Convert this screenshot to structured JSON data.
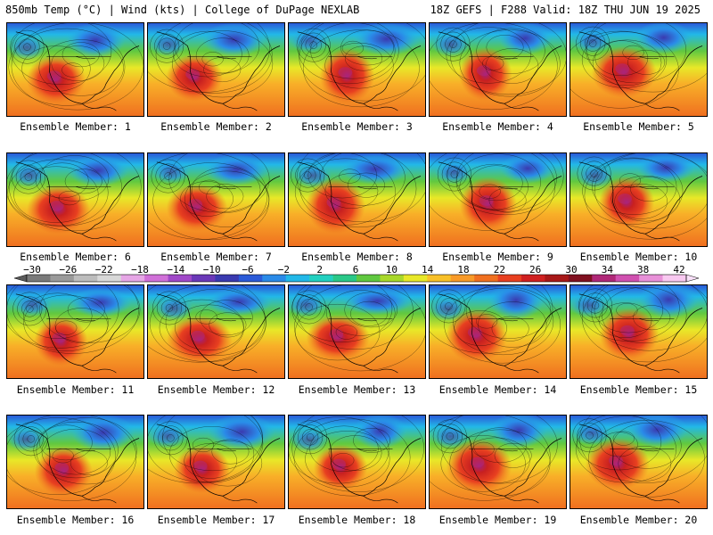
{
  "header": {
    "title": "850mb Temp (°C) | Wind (kts) | College of DuPage NEXLAB",
    "run_info": "18Z GEFS | F288 Valid: 18Z THU JUN 19 2025"
  },
  "caption_prefix": "Ensemble Member: ",
  "members": [
    "1",
    "2",
    "3",
    "4",
    "5",
    "6",
    "7",
    "8",
    "9",
    "10",
    "11",
    "12",
    "13",
    "14",
    "15",
    "16",
    "17",
    "18",
    "19",
    "20"
  ],
  "colorbar": {
    "tick_labels": [
      "-30",
      "-26",
      "-22",
      "-18",
      "-14",
      "-10",
      "-6",
      "-2",
      "2",
      "6",
      "10",
      "14",
      "18",
      "22",
      "26",
      "30",
      "34",
      "38",
      "42"
    ],
    "colors": [
      "#7a7a7a",
      "#9a9a9a",
      "#bcbcbc",
      "#d8d8d8",
      "#e6a6e6",
      "#d070d8",
      "#a048c8",
      "#6a38b8",
      "#3a3ab0",
      "#2a5ad8",
      "#2a8ae8",
      "#22b8e8",
      "#22d0c0",
      "#2ac888",
      "#60c840",
      "#a8d82a",
      "#e8e828",
      "#f8c028",
      "#f89a28",
      "#f07020",
      "#e84020",
      "#d02020",
      "#a81818",
      "#801020",
      "#b02878",
      "#d050b0",
      "#e890d8",
      "#f8c8f0"
    ],
    "units": "°C"
  }
}
